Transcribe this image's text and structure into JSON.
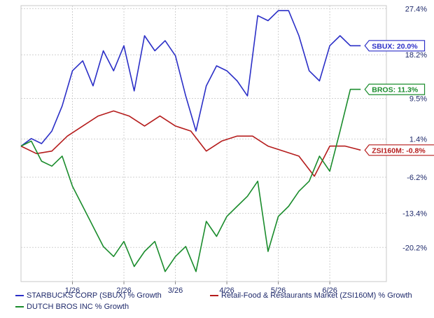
{
  "chart_data": {
    "type": "line",
    "x_ticks": [
      "1/26",
      "2/26",
      "3/26",
      "4/26",
      "5/26",
      "6/26"
    ],
    "y_ticks": [
      "27.4%",
      "18.2%",
      "9.5%",
      "1.4%",
      "-6.2%",
      "-13.4%",
      "-20.2%"
    ],
    "y_tick_values": [
      27.4,
      18.2,
      9.5,
      1.4,
      -6.2,
      -13.4,
      -20.2
    ],
    "ylim": [
      -27,
      28
    ],
    "xlim": [
      0,
      7.1
    ],
    "grid": true,
    "series": [
      {
        "name": "STARBUCKS CORP (SBUX) % Growth",
        "color": "#2b2fc7",
        "end_label": "SBUX: 20.0%",
        "x": [
          0.0,
          0.2,
          0.4,
          0.6,
          0.8,
          1.0,
          1.2,
          1.4,
          1.6,
          1.8,
          2.0,
          2.2,
          2.4,
          2.6,
          2.8,
          3.0,
          3.2,
          3.4,
          3.6,
          3.8,
          4.0,
          4.2,
          4.4,
          4.6,
          4.8,
          5.0,
          5.2,
          5.4,
          5.6,
          5.8,
          6.0,
          6.2,
          6.4,
          6.6
        ],
        "y": [
          0,
          1.5,
          0.5,
          3,
          8,
          15,
          17,
          12,
          19,
          15,
          20,
          11,
          22,
          19,
          21,
          18,
          10,
          3,
          12,
          16,
          15,
          13,
          10,
          26,
          25,
          27,
          27,
          22,
          15,
          13,
          20,
          22,
          20,
          20
        ]
      },
      {
        "name": "Retail-Food & Restaurants Market (ZSI160M) % Growth",
        "color": "#b51c1c",
        "end_label": "ZSI160M: -0.8%",
        "x": [
          0.0,
          0.3,
          0.6,
          0.9,
          1.2,
          1.5,
          1.8,
          2.1,
          2.4,
          2.7,
          3.0,
          3.3,
          3.6,
          3.9,
          4.2,
          4.5,
          4.8,
          5.1,
          5.4,
          5.7,
          6.0,
          6.3,
          6.6
        ],
        "y": [
          0,
          -1.5,
          -1,
          2,
          4,
          6,
          7,
          6,
          4,
          6,
          4,
          3,
          -1,
          1,
          2,
          2,
          0,
          -1,
          -2,
          -6,
          0,
          0,
          -0.8
        ]
      },
      {
        "name": "DUTCH BROS INC % Growth",
        "color": "#1a8c2c",
        "end_label": "BROS: 11.3%",
        "x": [
          0.0,
          0.2,
          0.4,
          0.6,
          0.8,
          1.0,
          1.2,
          1.4,
          1.6,
          1.8,
          2.0,
          2.2,
          2.4,
          2.6,
          2.8,
          3.0,
          3.2,
          3.4,
          3.6,
          3.8,
          4.0,
          4.2,
          4.4,
          4.6,
          4.8,
          5.0,
          5.2,
          5.4,
          5.6,
          5.8,
          6.0,
          6.2,
          6.4,
          6.6
        ],
        "y": [
          0,
          1,
          -3,
          -4,
          -2,
          -8,
          -12,
          -16,
          -20,
          -22,
          -19,
          -24,
          -21,
          -19,
          -25,
          -22,
          -20,
          -25,
          -15,
          -18,
          -14,
          -12,
          -10,
          -7,
          -21,
          -14,
          -12,
          -9,
          -7,
          -2,
          -5,
          3,
          11.3,
          11.3
        ]
      }
    ],
    "legend_placement": "bottom"
  }
}
